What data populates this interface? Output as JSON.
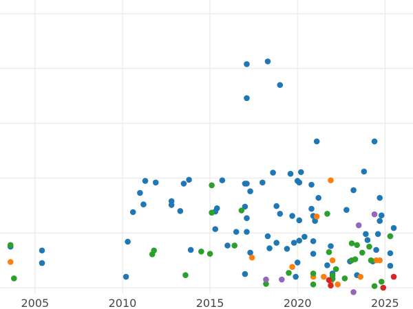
{
  "chart_data": {
    "type": "scatter",
    "title": "",
    "xlabel": "",
    "ylabel": "",
    "xlim": [
      2003.0,
      2026.6
    ],
    "ylim": [
      -0.1,
      5.0
    ],
    "xticks": [
      2005,
      2010,
      2015,
      2020,
      2025
    ],
    "xtick_labels": [
      "2005",
      "2010",
      "2015",
      "2020",
      "2025"
    ],
    "yticks": [
      0,
      1,
      2,
      3,
      4,
      5
    ],
    "ytick_labels_visible": false,
    "grid": true,
    "legend": "none",
    "colors": {
      "blue": "#1f77b4",
      "orange": "#ff7f0e",
      "green": "#2ca02c",
      "red": "#d62728",
      "purple": "#9467bd",
      "grid": "#e6e6e6",
      "tick_text": "#444444"
    },
    "series": [
      {
        "color": "#1f77b4",
        "points": [
          [
            2003.6,
            0.75
          ],
          [
            2005.4,
            0.68
          ],
          [
            2005.4,
            0.45
          ],
          [
            2010.3,
            0.84
          ],
          [
            2010.2,
            0.2
          ],
          [
            2010.6,
            1.38
          ],
          [
            2011.0,
            1.73
          ],
          [
            2011.2,
            1.52
          ],
          [
            2011.3,
            1.95
          ],
          [
            2011.9,
            1.92
          ],
          [
            2012.8,
            1.58
          ],
          [
            2012.8,
            1.51
          ],
          [
            2013.3,
            1.4
          ],
          [
            2013.5,
            1.9
          ],
          [
            2013.8,
            1.97
          ],
          [
            2013.9,
            0.69
          ],
          [
            2015.3,
            1.07
          ],
          [
            2015.4,
            1.45
          ],
          [
            2015.3,
            1.39
          ],
          [
            2015.7,
            1.96
          ],
          [
            2016.0,
            0.77
          ],
          [
            2016.5,
            1.02
          ],
          [
            2017.0,
            1.48
          ],
          [
            2017.1,
            1.27
          ],
          [
            2017.0,
            1.9
          ],
          [
            2017.1,
            1.02
          ],
          [
            2017.0,
            0.25
          ],
          [
            2017.3,
            1.76
          ],
          [
            2017.3,
            0.64
          ],
          [
            2017.1,
            4.08
          ],
          [
            2017.1,
            3.46
          ],
          [
            2018.3,
            4.13
          ],
          [
            2018.0,
            1.92
          ],
          [
            2018.3,
            0.94
          ],
          [
            2018.4,
            0.72
          ],
          [
            2018.6,
            2.1
          ],
          [
            2018.8,
            0.82
          ],
          [
            2018.8,
            1.49
          ],
          [
            2019.0,
            1.35
          ],
          [
            2019.0,
            3.7
          ],
          [
            2019.4,
            0.71
          ],
          [
            2019.6,
            2.08
          ],
          [
            2019.7,
            1.31
          ],
          [
            2019.8,
            0.82
          ],
          [
            2019.9,
            0.2
          ],
          [
            2020.0,
            1.95
          ],
          [
            2020.1,
            1.92
          ],
          [
            2020.1,
            0.86
          ],
          [
            2020.1,
            1.23
          ],
          [
            2020.2,
            2.11
          ],
          [
            2020.4,
            0.93
          ],
          [
            2020.8,
            1.88
          ],
          [
            2020.8,
            1.44
          ],
          [
            2020.9,
            1.31
          ],
          [
            2020.9,
            0.85
          ],
          [
            2020.9,
            0.62
          ],
          [
            2021.0,
            1.22
          ],
          [
            2021.1,
            2.67
          ],
          [
            2021.2,
            1.64
          ],
          [
            2021.7,
            0.41
          ],
          [
            2021.9,
            0.76
          ],
          [
            2022.0,
            0.26
          ],
          [
            2022.0,
            0.17
          ],
          [
            2022.8,
            1.42
          ],
          [
            2023.0,
            0.48
          ],
          [
            2023.2,
            1.78
          ],
          [
            2023.4,
            0.23
          ],
          [
            2023.8,
            2.12
          ],
          [
            2023.9,
            0.98
          ],
          [
            2024.0,
            0.87
          ],
          [
            2024.3,
            0.48
          ],
          [
            2024.4,
            2.67
          ],
          [
            2024.5,
            0.69
          ],
          [
            2024.6,
            0.98
          ],
          [
            2024.7,
            1.22
          ],
          [
            2024.7,
            1.64
          ],
          [
            2024.8,
            1.32
          ],
          [
            2025.3,
            0.63
          ],
          [
            2025.3,
            0.4
          ],
          [
            2025.5,
            1.09
          ],
          [
            2025.3,
            0.94
          ],
          [
            2020.0,
            0.46
          ],
          [
            2017.1,
            1.9
          ]
        ]
      },
      {
        "color": "#ff7f0e",
        "points": [
          [
            2003.6,
            0.47
          ],
          [
            2017.4,
            0.55
          ],
          [
            2019.7,
            0.38
          ],
          [
            2020.9,
            0.2
          ],
          [
            2021.1,
            1.3
          ],
          [
            2021.5,
            0.2
          ],
          [
            2021.9,
            1.96
          ],
          [
            2022.0,
            0.5
          ],
          [
            2022.3,
            0.06
          ],
          [
            2023.6,
            0.2
          ],
          [
            2024.5,
            0.5
          ],
          [
            2024.7,
            0.5
          ],
          [
            2021.9,
            0.11
          ]
        ]
      },
      {
        "color": "#2ca02c",
        "points": [
          [
            2003.6,
            0.78
          ],
          [
            2003.8,
            0.17
          ],
          [
            2011.7,
            0.61
          ],
          [
            2011.8,
            0.68
          ],
          [
            2013.6,
            0.23
          ],
          [
            2014.5,
            0.66
          ],
          [
            2015.0,
            0.62
          ],
          [
            2015.1,
            1.87
          ],
          [
            2015.1,
            1.37
          ],
          [
            2016.4,
            0.77
          ],
          [
            2016.8,
            1.41
          ],
          [
            2018.2,
            0.07
          ],
          [
            2019.5,
            0.27
          ],
          [
            2020.9,
            0.06
          ],
          [
            2020.9,
            0.26
          ],
          [
            2021.7,
            1.35
          ],
          [
            2021.8,
            0.65
          ],
          [
            2022.0,
            0.16
          ],
          [
            2022.2,
            0.34
          ],
          [
            2022.7,
            0.17
          ],
          [
            2023.1,
            0.5
          ],
          [
            2023.3,
            0.52
          ],
          [
            2023.1,
            0.81
          ],
          [
            2023.4,
            0.78
          ],
          [
            2023.7,
            0.64
          ],
          [
            2024.1,
            0.75
          ],
          [
            2024.2,
            0.5
          ],
          [
            2024.4,
            0.03
          ],
          [
            2024.8,
            0.11
          ],
          [
            2025.3,
            0.94
          ],
          [
            2022.0,
            0.22
          ]
        ]
      },
      {
        "color": "#d62728",
        "points": [
          [
            2021.8,
            0.14
          ],
          [
            2021.9,
            0.04
          ],
          [
            2024.9,
            0.0
          ],
          [
            2025.5,
            0.2
          ]
        ]
      },
      {
        "color": "#9467bd",
        "points": [
          [
            2018.2,
            0.15
          ],
          [
            2019.1,
            0.15
          ],
          [
            2023.2,
            -0.08
          ],
          [
            2023.5,
            1.14
          ],
          [
            2024.4,
            1.34
          ]
        ]
      }
    ]
  }
}
